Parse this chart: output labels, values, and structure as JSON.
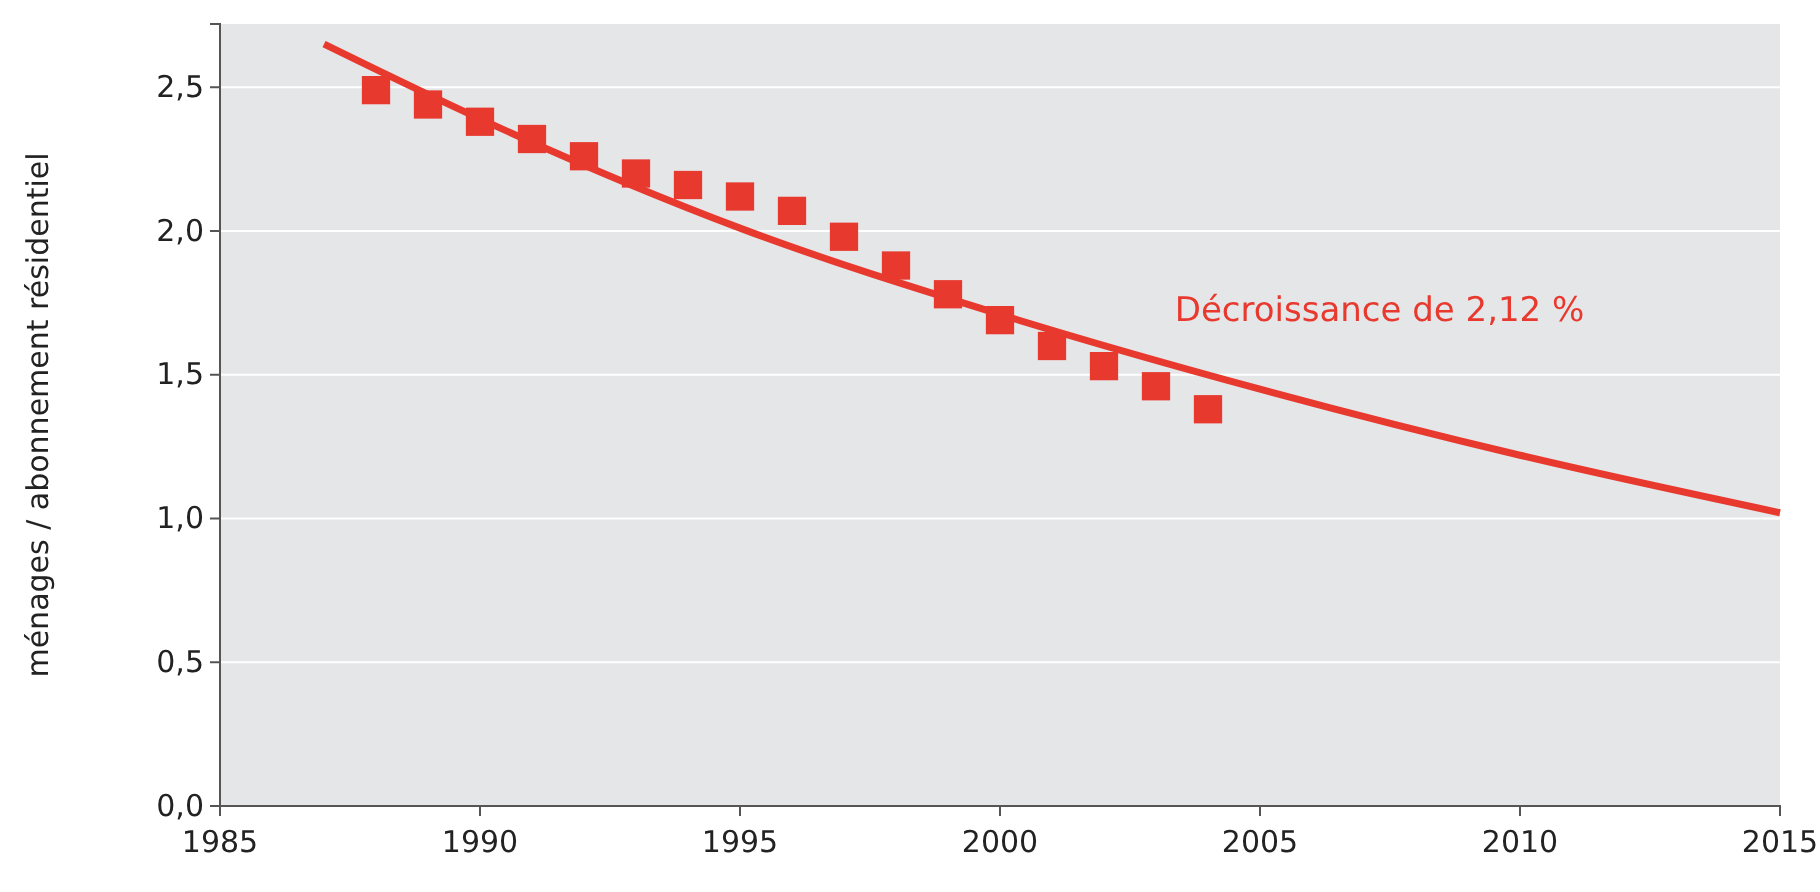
{
  "chart_data": {
    "type": "scatter",
    "ylabel": "ménages / abonnement résidentiel",
    "xlim": [
      1985,
      2015
    ],
    "xticks": [
      1985,
      1990,
      1995,
      2000,
      2005,
      2010,
      2015
    ],
    "ylim": [
      0,
      2.72
    ],
    "yticks": [
      {
        "value": 0,
        "label": "0,0"
      },
      {
        "value": 0.5,
        "label": "0,5"
      },
      {
        "value": 1,
        "label": "1,0"
      },
      {
        "value": 1.5,
        "label": "1,5"
      },
      {
        "value": 2,
        "label": "2,0"
      },
      {
        "value": 2.5,
        "label": "2,5"
      }
    ],
    "grid": "y",
    "series": [
      {
        "marker": "square",
        "color": "#e8392f",
        "x": [
          1988,
          1989,
          1990,
          1991,
          1992,
          1993,
          1994,
          1995,
          1996,
          1997,
          1998,
          1999,
          2000,
          2001,
          2002,
          2003,
          2004
        ],
        "values": [
          2.49,
          2.44,
          2.38,
          2.32,
          2.26,
          2.2,
          2.16,
          2.12,
          2.07,
          1.98,
          1.88,
          1.78,
          1.69,
          1.6,
          1.53,
          1.46,
          1.38
        ]
      },
      {
        "type": "line",
        "color": "#e8392f",
        "line_style": "solid",
        "x": [
          1987,
          1990,
          1995,
          2000,
          2005,
          2010,
          2015
        ],
        "values": [
          2.65,
          2.39,
          2.01,
          1.71,
          1.45,
          1.22,
          1.02
        ]
      }
    ],
    "annotations": [
      "Décroissance de 2,12 %"
    ]
  }
}
